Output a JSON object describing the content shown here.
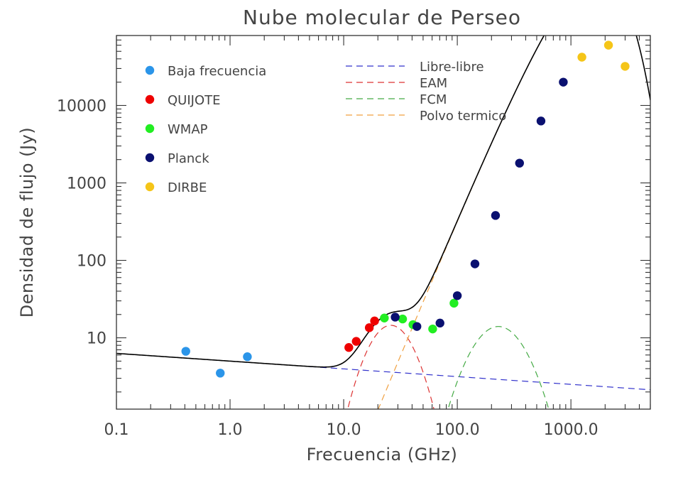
{
  "chart_data": {
    "type": "scatter",
    "title": "Nube molecular de Perseo",
    "xlabel": "Frecuencia (GHz)",
    "ylabel": "Densidad de flujo (Jy)",
    "xscale": "log",
    "yscale": "log",
    "xlim": [
      0.1,
      5000
    ],
    "ylim": [
      1.2,
      80000
    ],
    "x_ticks": [
      0.1,
      1.0,
      10.0,
      100.0,
      1000.0
    ],
    "x_tick_labels": [
      "0.1",
      "1.0",
      "10.0",
      "100.0",
      "1000.0"
    ],
    "y_ticks": [
      10,
      100,
      1000,
      10000
    ],
    "y_tick_labels": [
      "10",
      "100",
      "1000",
      "10000"
    ],
    "grid": false,
    "legend_position": "top-left",
    "series": [
      {
        "name": "Baja frecuencia",
        "color": "#2b95e9",
        "x": [
          0.408,
          0.82,
          1.42
        ],
        "y": [
          6.7,
          3.5,
          5.7
        ]
      },
      {
        "name": "QUIJOTE",
        "color": "#ee0000",
        "x": [
          11.1,
          12.9,
          16.8,
          18.7
        ],
        "y": [
          7.5,
          9.0,
          13.5,
          16.5
        ]
      },
      {
        "name": "WMAP",
        "color": "#22ee22",
        "x": [
          22.8,
          33.0,
          40.7,
          60.7,
          93.5
        ],
        "y": [
          18.0,
          17.5,
          14.8,
          13.0,
          28.0
        ]
      },
      {
        "name": "Planck",
        "color": "#0a1070",
        "x": [
          28.4,
          44.1,
          70.4,
          100,
          143,
          217,
          353,
          545,
          857
        ],
        "y": [
          18.5,
          14.0,
          15.5,
          35,
          90,
          380,
          1800,
          6300,
          20000
        ]
      },
      {
        "name": "DIRBE",
        "color": "#f5c518",
        "x": [
          1249,
          2141,
          2998
        ],
        "y": [
          42000,
          60000,
          32000
        ]
      }
    ],
    "model_lines": [
      {
        "name": "Libre-libre",
        "color": "#3333cc",
        "style": "dashed"
      },
      {
        "name": "EAM",
        "color": "#dd3333",
        "style": "dashed"
      },
      {
        "name": "FCM",
        "color": "#44aa44",
        "style": "dashed"
      },
      {
        "name": "Polvo termico",
        "color": "#f0a040",
        "style": "dashed"
      }
    ],
    "total_model": {
      "color": "#000000",
      "style": "solid"
    }
  }
}
